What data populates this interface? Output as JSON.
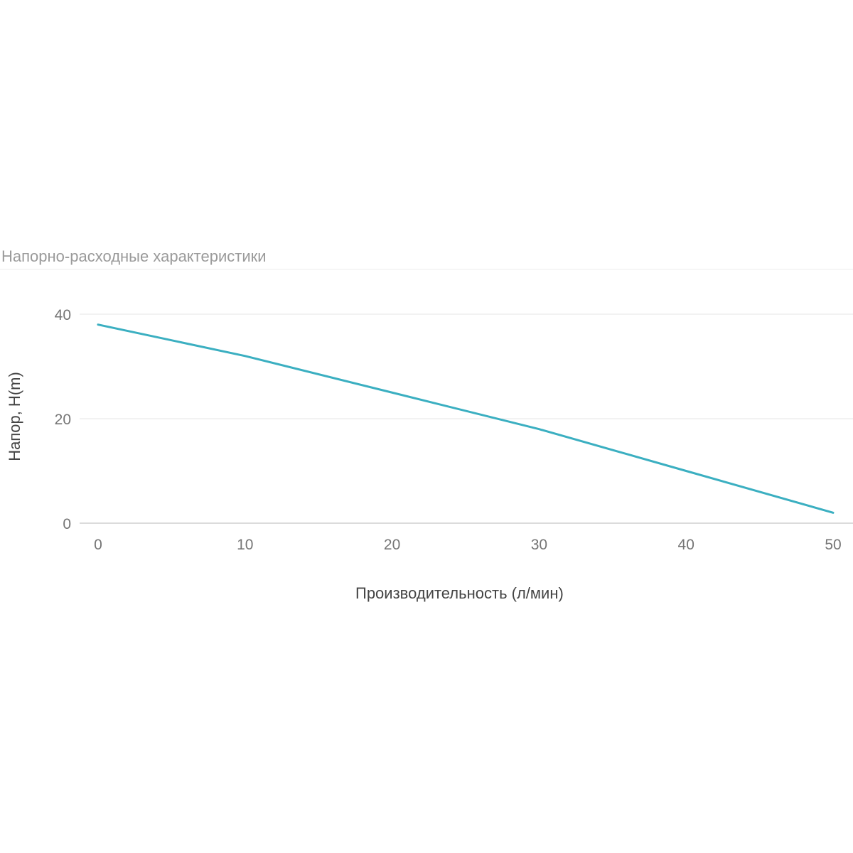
{
  "chart_data": {
    "type": "line",
    "title": "Напорно-расходные характеристики",
    "xlabel": "Производительность (л/мин)",
    "ylabel": "Напор, H(m)",
    "xlim": [
      -1,
      51
    ],
    "ylim": [
      0,
      45
    ],
    "x_ticks": [
      0,
      10,
      20,
      30,
      40,
      50
    ],
    "y_ticks": [
      0,
      20,
      40
    ],
    "grid": true,
    "legend": "none",
    "series": [
      {
        "color": "#3BAFC1",
        "x": [
          0,
          10,
          20,
          30,
          40,
          50
        ],
        "y": [
          38,
          32,
          25,
          18,
          10,
          2
        ]
      }
    ],
    "colors": {
      "line": "#3BAFC1",
      "grid": "#e6e6e6",
      "baseline": "#cfcfcf",
      "title": "#9a9a9a",
      "tick": "#757575",
      "axis_label": "#444444"
    }
  }
}
